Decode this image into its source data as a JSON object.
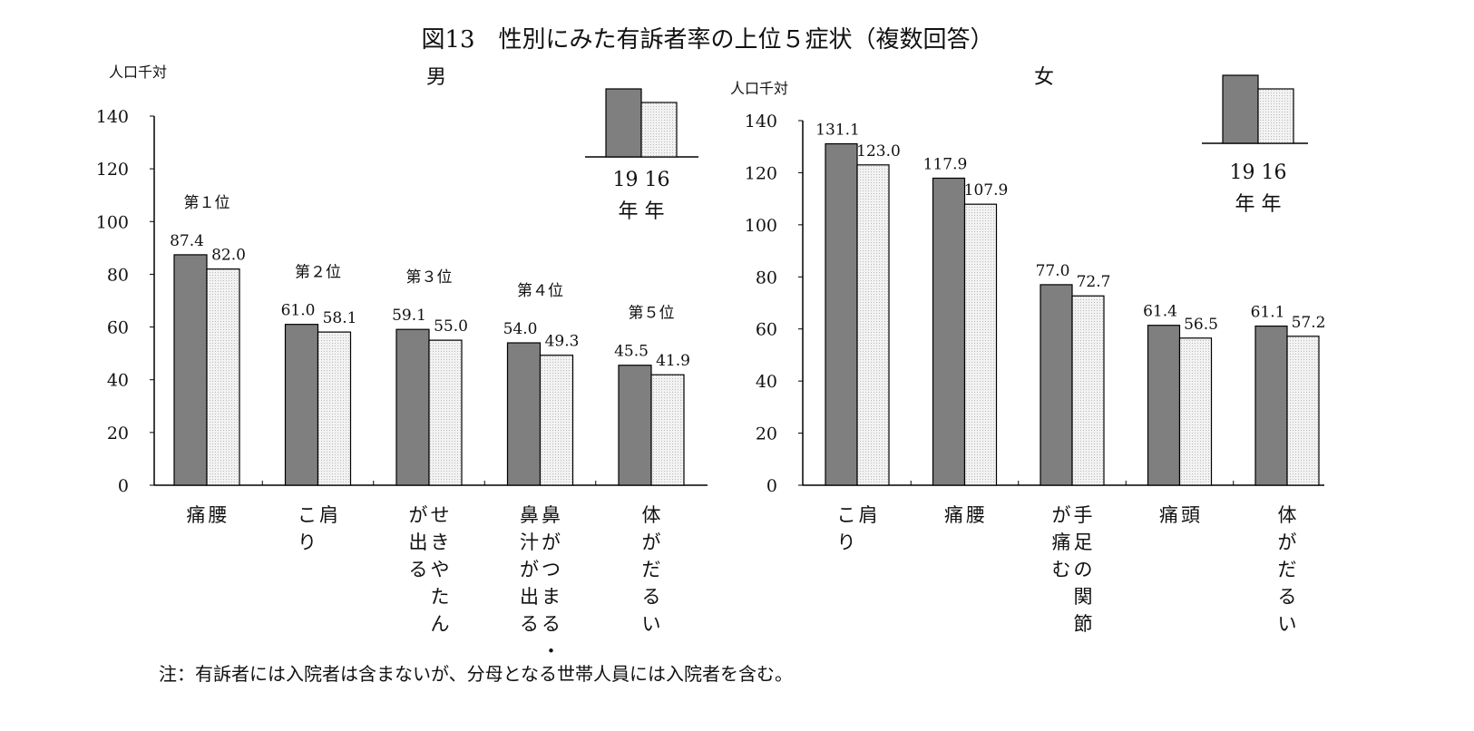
{
  "chart_data": [
    {
      "type": "bar",
      "panel": "男",
      "title": "男",
      "ylabel": "人口千対",
      "ylim": [
        0,
        140
      ],
      "yticks": [
        0,
        20,
        40,
        60,
        80,
        100,
        120,
        140
      ],
      "categories": [
        "腰\n痛",
        "肩\nこり",
        "せきやたん\nが出る",
        "鼻がつまる・\n鼻汁が出る",
        "体がだるい"
      ],
      "ranks": [
        "第１位",
        "第２位",
        "第３位",
        "第４位",
        "第５位"
      ],
      "series": [
        {
          "name": "19年",
          "values": [
            87.4,
            61.0,
            59.1,
            54.0,
            45.5
          ]
        },
        {
          "name": "16年",
          "values": [
            82.0,
            58.1,
            55.0,
            49.3,
            41.9
          ]
        }
      ],
      "legend": {
        "years": "19 16",
        "unit": "年 年"
      }
    },
    {
      "type": "bar",
      "panel": "女",
      "title": "女",
      "ylabel": "人口千対",
      "ylim": [
        0,
        140
      ],
      "yticks": [
        0,
        20,
        40,
        60,
        80,
        100,
        120,
        140
      ],
      "categories": [
        "肩\nこり",
        "腰\n痛",
        "手足の関節\nが痛む",
        "頭\n痛",
        "体がだるい"
      ],
      "series": [
        {
          "name": "19年",
          "values": [
            131.1,
            117.9,
            77.0,
            61.4,
            61.1
          ]
        },
        {
          "name": "16年",
          "values": [
            123.0,
            107.9,
            72.7,
            56.5,
            57.2
          ]
        }
      ],
      "legend": {
        "years": "19 16",
        "unit": "年 年"
      }
    }
  ],
  "title": "図13　性別にみた有訴者率の上位５症状（複数回答）",
  "note": "注：有訴者には入院者は含まないが、分母となる世帯人員には入院者を含む。",
  "colors": {
    "y19": "#7f7f7f",
    "y16": "#e6e6e6"
  }
}
